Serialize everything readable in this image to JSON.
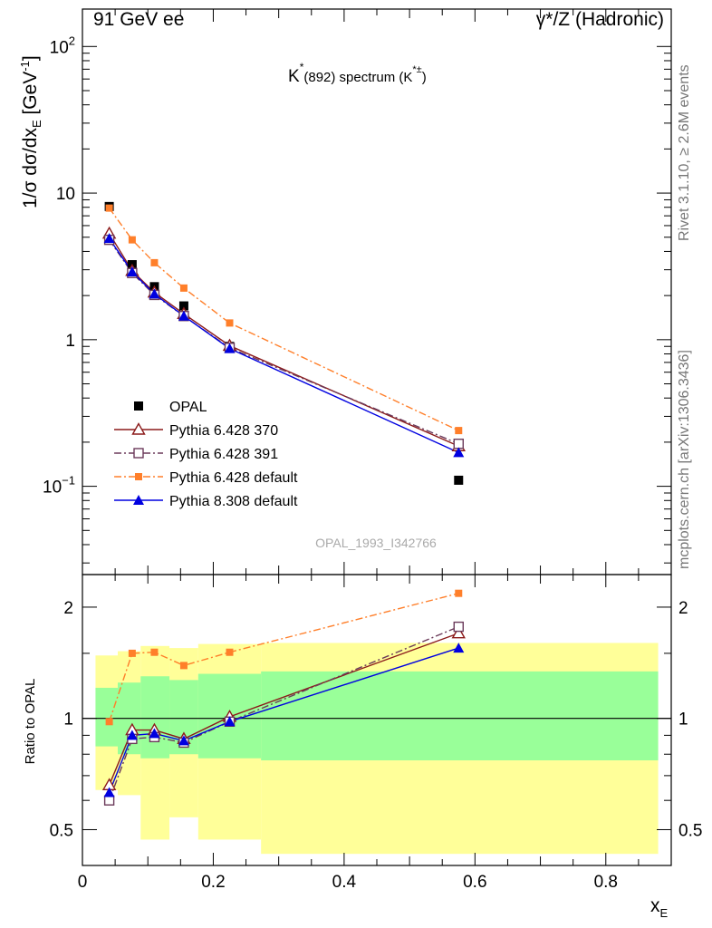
{
  "header": {
    "left": "91 GeV ee",
    "right": "γ*/Z (Hadronic)"
  },
  "side_labels": {
    "rivet": "Rivet 3.1.10, ≥ 2.6M events",
    "source": "mcplots.cern.ch [arXiv:1306.3436]"
  },
  "chart_data": [
    {
      "type": "scatter",
      "panel": "main",
      "title_main": "K",
      "title_sup": "*",
      "title_sub": "(892) spectrum (K",
      "title_sup2": "*±",
      "title_end": ")",
      "ylabel": "1/σ dσ/dx",
      "ylabel_sub": "E",
      "ylabel_unit": " [GeV",
      "ylabel_unit_sup": "-1",
      "ylabel_end": "]",
      "y_scale": "log",
      "xlim": [
        0,
        0.9
      ],
      "ylim": [
        0.025,
        180
      ],
      "y_ticks": [
        {
          "value": 0.1,
          "base": "10",
          "exp": "−1"
        },
        {
          "value": 1,
          "base": "1",
          "exp": ""
        },
        {
          "value": 10,
          "base": "10",
          "exp": ""
        },
        {
          "value": 100,
          "base": "10",
          "exp": "2"
        }
      ],
      "watermark": "OPAL_1993_I342766",
      "x": [
        0.041,
        0.076,
        0.11,
        0.155,
        0.225,
        0.575
      ],
      "series": [
        {
          "name": "OPAL",
          "marker": "filled-square",
          "color": "#000000",
          "line": "none",
          "values": [
            8.1,
            3.25,
            2.3,
            1.7,
            0.9,
            0.11
          ]
        },
        {
          "name": "Pythia 6.428 370",
          "marker": "open-triangle",
          "color": "#8b1a1a",
          "line": "solid",
          "values": [
            5.3,
            2.95,
            2.1,
            1.5,
            0.91,
            0.188
          ]
        },
        {
          "name": "Pythia 6.428 391",
          "marker": "open-square",
          "color": "#6b3a5a",
          "line": "dashdot",
          "values": [
            4.8,
            2.85,
            2.02,
            1.45,
            0.88,
            0.195
          ]
        },
        {
          "name": "Pythia 6.428 default",
          "marker": "small-square",
          "color": "#ff7f2a",
          "line": "dashdot",
          "values": [
            7.9,
            4.8,
            3.35,
            2.25,
            1.3,
            0.24
          ]
        },
        {
          "name": "Pythia 8.308 default",
          "marker": "filled-triangle",
          "color": "#0000e0",
          "line": "solid",
          "values": [
            4.9,
            2.9,
            2.05,
            1.45,
            0.87,
            0.17
          ]
        }
      ]
    },
    {
      "type": "line",
      "panel": "ratio",
      "ylabel": "Ratio to OPAL",
      "xlabel": "x",
      "xlabel_sub": "E",
      "y_scale": "log",
      "xlim": [
        0,
        0.9
      ],
      "ylim": [
        0.4,
        2.45
      ],
      "x_ticks": [
        0,
        0.2,
        0.4,
        0.6,
        0.8
      ],
      "x_tick_labels": [
        "0",
        "0.2",
        "0.4",
        "0.6",
        "0.8"
      ],
      "y_ticks": [
        0.5,
        1,
        2
      ],
      "y_tick_labels": [
        "0.5",
        "1",
        "2"
      ],
      "bands": {
        "edges": [
          0.02,
          0.054,
          0.089,
          0.133,
          0.177,
          0.273,
          0.88
        ],
        "yellow_low": [
          0.64,
          0.62,
          0.47,
          0.54,
          0.47,
          0.43
        ],
        "yellow_high": [
          1.48,
          1.52,
          1.57,
          1.55,
          1.59,
          1.6
        ],
        "green_low": [
          0.84,
          0.8,
          0.78,
          0.8,
          0.78,
          0.77
        ],
        "green_high": [
          1.21,
          1.25,
          1.3,
          1.27,
          1.32,
          1.34
        ]
      },
      "x": [
        0.041,
        0.076,
        0.11,
        0.155,
        0.225,
        0.575
      ],
      "series": [
        {
          "name": "Pythia 6.428 370",
          "marker": "open-triangle",
          "color": "#8b1a1a",
          "line": "solid",
          "values": [
            0.66,
            0.93,
            0.93,
            0.88,
            1.01,
            1.7
          ]
        },
        {
          "name": "Pythia 6.428 391",
          "marker": "open-square",
          "color": "#6b3a5a",
          "line": "dashdot",
          "values": [
            0.6,
            0.88,
            0.89,
            0.86,
            0.98,
            1.77
          ]
        },
        {
          "name": "Pythia 6.428 default",
          "marker": "small-square",
          "color": "#ff7f2a",
          "line": "dashdot",
          "values": [
            0.98,
            1.5,
            1.51,
            1.39,
            1.51,
            2.18
          ]
        },
        {
          "name": "Pythia 8.308 default",
          "marker": "filled-triangle",
          "color": "#0000e0",
          "line": "solid",
          "values": [
            0.63,
            0.9,
            0.91,
            0.87,
            0.98,
            1.55
          ]
        }
      ]
    }
  ]
}
